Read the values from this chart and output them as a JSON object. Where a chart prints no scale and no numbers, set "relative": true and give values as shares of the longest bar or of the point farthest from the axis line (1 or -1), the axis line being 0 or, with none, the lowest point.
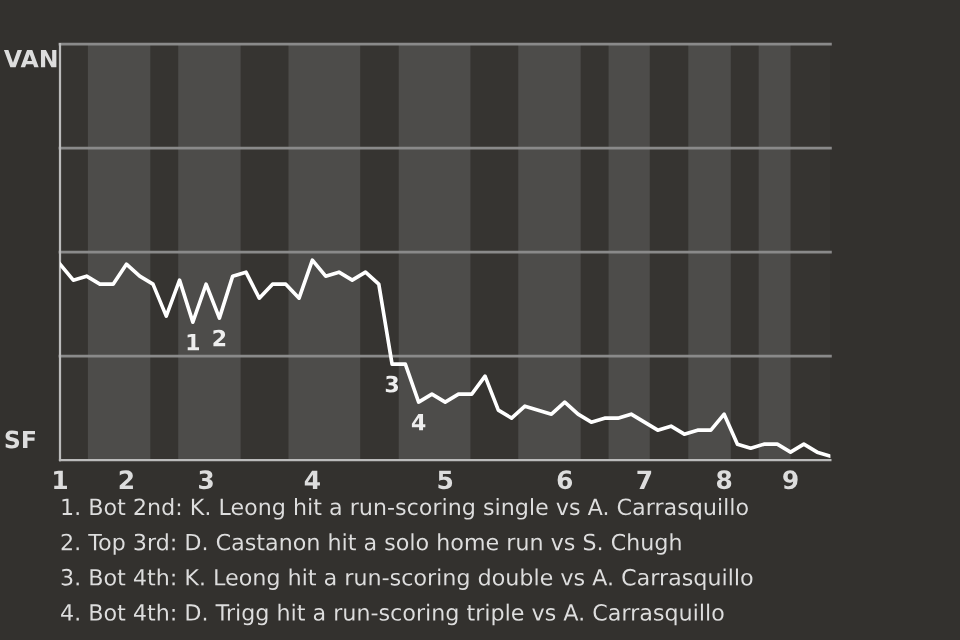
{
  "chart_data": {
    "type": "line",
    "relative": true,
    "categories": [
      "1",
      null,
      null,
      null,
      null,
      "2",
      null,
      null,
      null,
      null,
      null,
      "3",
      null,
      null,
      null,
      null,
      null,
      null,
      null,
      "4",
      null,
      null,
      null,
      null,
      null,
      null,
      null,
      null,
      null,
      "5",
      null,
      null,
      null,
      null,
      null,
      null,
      null,
      null,
      "6",
      null,
      null,
      null,
      null,
      null,
      "7",
      null,
      null,
      null,
      null,
      null,
      "8",
      null,
      null,
      null,
      null,
      "9",
      null,
      null,
      null
    ],
    "series": [
      {
        "color": "#ffffff",
        "values": [
          0.98,
          0.9,
          0.92,
          0.88,
          0.88,
          0.98,
          0.92,
          0.88,
          0.72,
          0.9,
          0.69,
          0.88,
          0.71,
          0.92,
          0.94,
          0.81,
          0.88,
          0.88,
          0.81,
          1,
          0.92,
          0.94,
          0.9,
          0.94,
          0.88,
          0.48,
          0.48,
          0.29,
          0.33,
          0.29,
          0.33,
          0.33,
          0.42,
          0.25,
          0.21,
          0.27,
          0.25,
          0.23,
          0.29,
          0.23,
          0.19,
          0.21,
          0.21,
          0.23,
          0.19,
          0.15,
          0.17,
          0.13,
          0.15,
          0.15,
          0.23,
          0.08,
          0.06,
          0.08,
          0.08,
          0.04,
          0.08,
          0.04,
          0.02
        ],
        "name": null
      }
    ],
    "ref_lines": [
      {
        "axis": "y",
        "value": 0.52,
        "color": "#8a8a8a"
      },
      {
        "axis": "y",
        "value": 1.04,
        "color": "#8a8a8a"
      },
      {
        "axis": "y",
        "value": 1.56,
        "color": "#8a8a8a"
      },
      {
        "axis": "y",
        "value": 2.08,
        "color": "#8a8a8a"
      }
    ],
    "marker": "none",
    "line_style": "solid",
    "annotations": [
      "VAN",
      "SF",
      {
        "text": "1",
        "y": 0.69
      },
      {
        "text": "2",
        "y": 0.71
      },
      {
        "text": "3",
        "y": 0.48
      },
      {
        "text": "4",
        "y": 0.29
      },
      "1. Bot 2nd: K. Leong hit a run-scoring single vs A. Carrasquillo",
      "2. Top 3rd: D. Castanon hit a solo home run vs S. Chugh",
      "3. Bot 4th: K. Leong hit a run-scoring double vs A. Carrasquillo",
      "4. Bot 4th: D. Trigg hit a run-scoring triple vs A. Carrasquillo"
    ]
  }
}
